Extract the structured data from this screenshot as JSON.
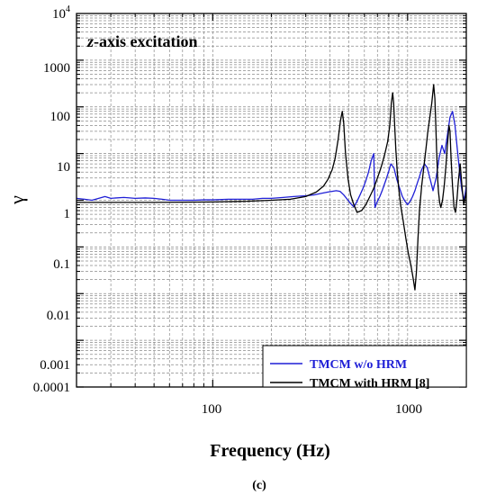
{
  "panel_label": "(c)",
  "chart_data": {
    "type": "line",
    "title": "z-axis excitation",
    "title_italic_part": "z",
    "title_rest": "-axis excitation",
    "xlabel": "Frequency (Hz)",
    "ylabel": "γ",
    "x_scale": "log",
    "y_scale": "log",
    "xlim": [
      20,
      2000
    ],
    "ylim": [
      0.0001,
      10000
    ],
    "x_tick_labels": [
      "100",
      "1000"
    ],
    "y_tick_labels": [
      "0.0001",
      "0.001",
      "0.01",
      "0.1",
      "1",
      "10",
      "100",
      "1000"
    ],
    "y_top_tick_base": "10",
    "y_top_tick_exp": "4",
    "grid": true,
    "legend_position": "bottom-right",
    "series": [
      {
        "name": "TMCM w/o HRM",
        "color": "#1f1fd6",
        "x": [
          20,
          22,
          24,
          26,
          28,
          30,
          35,
          40,
          45,
          50,
          55,
          60,
          70,
          80,
          90,
          100,
          120,
          140,
          160,
          180,
          200,
          230,
          260,
          300,
          330,
          360,
          390,
          410,
          430,
          450,
          470,
          490,
          510,
          530,
          550,
          570,
          590,
          610,
          630,
          650,
          670,
          680,
          700,
          720,
          740,
          760,
          780,
          800,
          820,
          850,
          880,
          910,
          940,
          970,
          1000,
          1030,
          1060,
          1090,
          1120,
          1150,
          1180,
          1220,
          1260,
          1300,
          1350,
          1400,
          1450,
          1500,
          1550,
          1600,
          1650,
          1700,
          1750,
          1800,
          1850,
          1900,
          1950,
          2000
        ],
        "y": [
          1.1,
          1.05,
          1.0,
          1.1,
          1.2,
          1.1,
          1.15,
          1.1,
          1.12,
          1.1,
          1.05,
          1.0,
          1.0,
          1.0,
          1.02,
          1.02,
          1.05,
          1.05,
          1.05,
          1.1,
          1.1,
          1.15,
          1.2,
          1.25,
          1.3,
          1.4,
          1.5,
          1.55,
          1.6,
          1.55,
          1.3,
          1.05,
          0.85,
          0.72,
          0.95,
          1.3,
          1.8,
          2.6,
          4.0,
          7.0,
          10.0,
          0.7,
          0.95,
          1.2,
          1.6,
          2.2,
          3.0,
          4.2,
          6.0,
          5.0,
          2.8,
          1.8,
          1.2,
          0.95,
          0.8,
          0.95,
          1.2,
          1.6,
          2.3,
          3.2,
          4.5,
          6.0,
          5.0,
          3.0,
          1.6,
          3.0,
          8.0,
          15.0,
          10.0,
          25.0,
          60.0,
          80.0,
          40.0,
          12.0,
          4.0,
          1.6,
          1.0,
          2.0
        ]
      },
      {
        "name": "TMCM with HRM [8]",
        "color": "#000000",
        "x": [
          20,
          50,
          100,
          150,
          200,
          250,
          300,
          340,
          370,
          390,
          410,
          425,
          440,
          452,
          462,
          470,
          480,
          495,
          510,
          530,
          550,
          580,
          610,
          640,
          670,
          700,
          730,
          760,
          790,
          810,
          825,
          838,
          848,
          858,
          870,
          885,
          900,
          920,
          950,
          980,
          1010,
          1040,
          1070,
          1090,
          1110,
          1130,
          1150,
          1180,
          1210,
          1240,
          1270,
          1300,
          1330,
          1360,
          1380,
          1395,
          1410,
          1425,
          1440,
          1460,
          1480,
          1510,
          1540,
          1570,
          1600,
          1630,
          1650,
          1670,
          1700,
          1730,
          1760,
          1790,
          1820,
          1860,
          1900,
          1940,
          2000
        ],
        "y": [
          0.9,
          0.9,
          0.92,
          0.95,
          1.0,
          1.05,
          1.2,
          1.5,
          2.0,
          2.8,
          4.5,
          8.0,
          20.0,
          50.0,
          80.0,
          45.0,
          10.0,
          2.8,
          1.3,
          0.8,
          0.55,
          0.6,
          0.8,
          1.2,
          1.8,
          3.0,
          5.0,
          9.0,
          18.0,
          40.0,
          120.0,
          200.0,
          120.0,
          40.0,
          12.0,
          4.0,
          1.8,
          0.8,
          0.35,
          0.15,
          0.07,
          0.04,
          0.02,
          0.012,
          0.03,
          0.15,
          0.6,
          2.0,
          5.0,
          12.0,
          30.0,
          60.0,
          120.0,
          300.0,
          150.0,
          40.0,
          10.0,
          3.0,
          1.5,
          0.9,
          0.7,
          1.0,
          2.0,
          5.0,
          15.0,
          40.0,
          30.0,
          8.0,
          2.0,
          0.7,
          0.55,
          1.0,
          2.5,
          6.0,
          2.0,
          0.8,
          1.5
        ]
      }
    ]
  }
}
